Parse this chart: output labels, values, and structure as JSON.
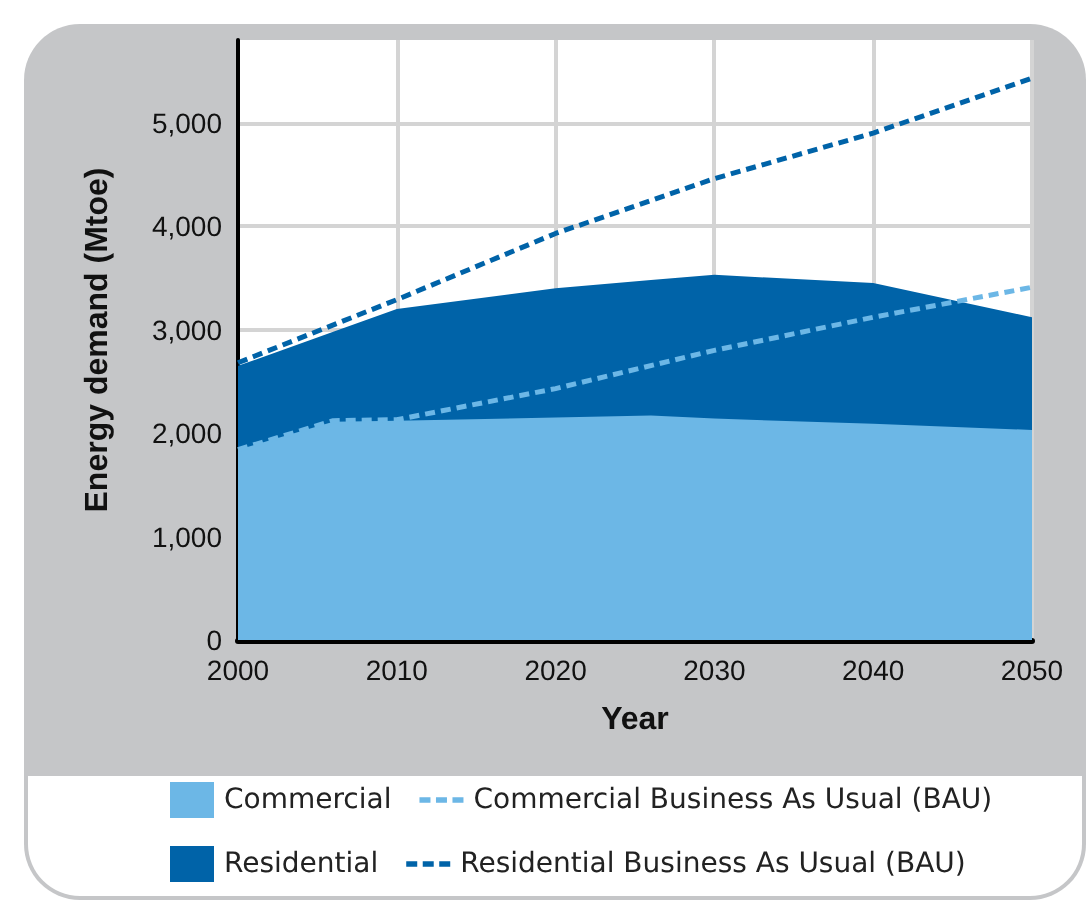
{
  "chart_data": {
    "type": "area",
    "xlabel": "Year",
    "ylabel": "Energy demand (Mtoe)",
    "x": [
      2000,
      2006,
      2010,
      2020,
      2026,
      2030,
      2040,
      2050
    ],
    "stacked": true,
    "series": [
      {
        "name": "Commercial",
        "color": "#6cb7e6",
        "values": [
          1840,
          2110,
          2120,
          2150,
          2170,
          2140,
          2090,
          2030
        ]
      },
      {
        "name": "Commercial Business As Usual (BAU)",
        "type": "line",
        "color": "#6cb7e6",
        "line_style": "dashed",
        "x": [
          2000,
          2006,
          2010,
          2020,
          2030,
          2040,
          2050
        ],
        "values": [
          1840,
          2120,
          2130,
          2430,
          2800,
          3120,
          3410
        ]
      },
      {
        "name": "Residential",
        "color": "#0063a8",
        "values": [
          810,
          870,
          1080,
          1250,
          1310,
          1390,
          1360,
          1090
        ]
      },
      {
        "name": "Residential Business As Usual (BAU)",
        "type": "line",
        "color": "#0063a8",
        "line_style": "dashed",
        "x": [
          2000,
          2010,
          2020,
          2030,
          2040,
          2050
        ],
        "values": [
          2680,
          3290,
          3930,
          4460,
          4900,
          5430
        ]
      }
    ],
    "xlim": [
      2000,
      2050
    ],
    "xticks": [
      2000,
      2010,
      2020,
      2030,
      2040,
      2050
    ],
    "ylim": [
      0,
      5800
    ],
    "yticks": [
      0,
      {
        "value": 1000,
        "label": "1,000"
      },
      {
        "value": 2000,
        "label": "2,000"
      },
      {
        "value": 3000,
        "label": "3,000"
      },
      {
        "value": 4000,
        "label": "4,000"
      },
      {
        "value": 5000,
        "label": "5,000"
      }
    ],
    "grid": true,
    "legend": "bottom",
    "marker": "none"
  }
}
